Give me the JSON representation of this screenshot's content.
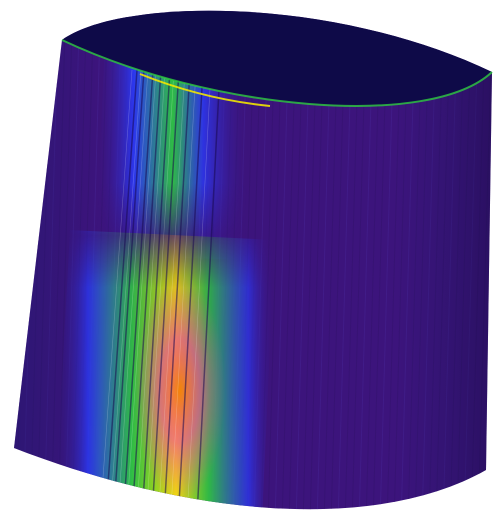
{
  "scene": {
    "subject": "cylinder",
    "colormap": "rainbow",
    "background": "#ffffff",
    "top_cap_color": "#0e0a48",
    "base_color": "#3c147c"
  },
  "colors": {
    "deep_purple": "#3c147c",
    "dark_navy": "#0e0a48",
    "blue": "#2a3cff",
    "green": "#2ecc40",
    "yellow": "#f2e600",
    "orange": "#ff8800",
    "magenta": "#ff3cb4"
  }
}
